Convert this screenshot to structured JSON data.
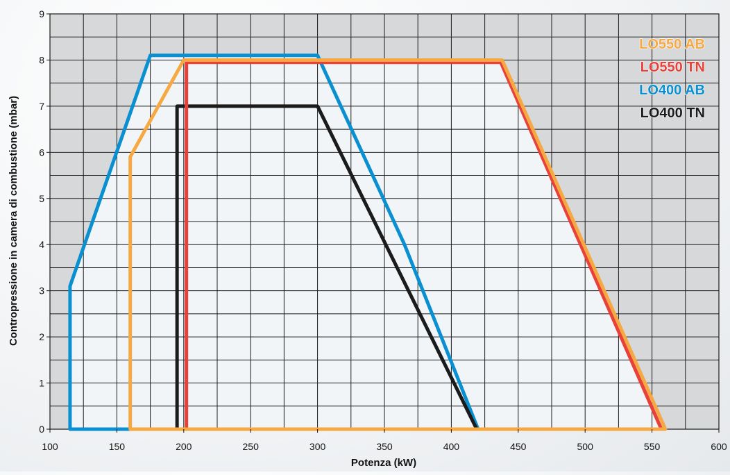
{
  "chart_data": {
    "type": "line",
    "xlabel": "Potenza (kW)",
    "ylabel": "Contropressione in camera di combustione (mbar)",
    "xlim": [
      100,
      600
    ],
    "ylim": [
      0,
      9
    ],
    "x_ticks": [
      100,
      150,
      200,
      250,
      300,
      350,
      400,
      450,
      500,
      550,
      600
    ],
    "y_ticks": [
      0,
      1,
      2,
      3,
      4,
      5,
      6,
      7,
      8,
      9
    ],
    "minor_x_step": 25,
    "minor_y_step": 0.5,
    "grid": true,
    "legend_position": "top-right",
    "plot_background": "#f2f5f8",
    "outside_region_color": "#d6d8da",
    "grid_color": "#1a1a1a",
    "series": [
      {
        "name": "LO400 AB",
        "color": "#0a8fd0",
        "points": [
          [
            115,
            0
          ],
          [
            115,
            3.1
          ],
          [
            175,
            8.1
          ],
          [
            300,
            8.1
          ],
          [
            365,
            4.0
          ],
          [
            420,
            0
          ],
          [
            115,
            0
          ]
        ]
      },
      {
        "name": "LO400 TN",
        "color": "#1b1b1b",
        "points": [
          [
            195,
            0
          ],
          [
            195,
            7.0
          ],
          [
            300,
            7.0
          ],
          [
            419,
            0
          ],
          [
            195,
            0
          ]
        ]
      },
      {
        "name": "LO550 TN",
        "color": "#e8413a",
        "points": [
          [
            202,
            0
          ],
          [
            202,
            7.95
          ],
          [
            437,
            7.95
          ],
          [
            557,
            0
          ],
          [
            202,
            0
          ]
        ]
      },
      {
        "name": "LO550 AB",
        "color": "#f6a943",
        "points": [
          [
            160,
            0
          ],
          [
            160,
            5.9
          ],
          [
            200,
            8.0
          ],
          [
            438,
            8.0
          ],
          [
            560,
            0
          ],
          [
            160,
            0
          ]
        ]
      }
    ],
    "legend": [
      {
        "label": "LO550 AB",
        "color": "#f6a943"
      },
      {
        "label": "LO550 TN",
        "color": "#e8413a"
      },
      {
        "label": "LO400 AB",
        "color": "#0a8fd0"
      },
      {
        "label": "LO400 TN",
        "color": "#1b1b1b"
      }
    ]
  }
}
